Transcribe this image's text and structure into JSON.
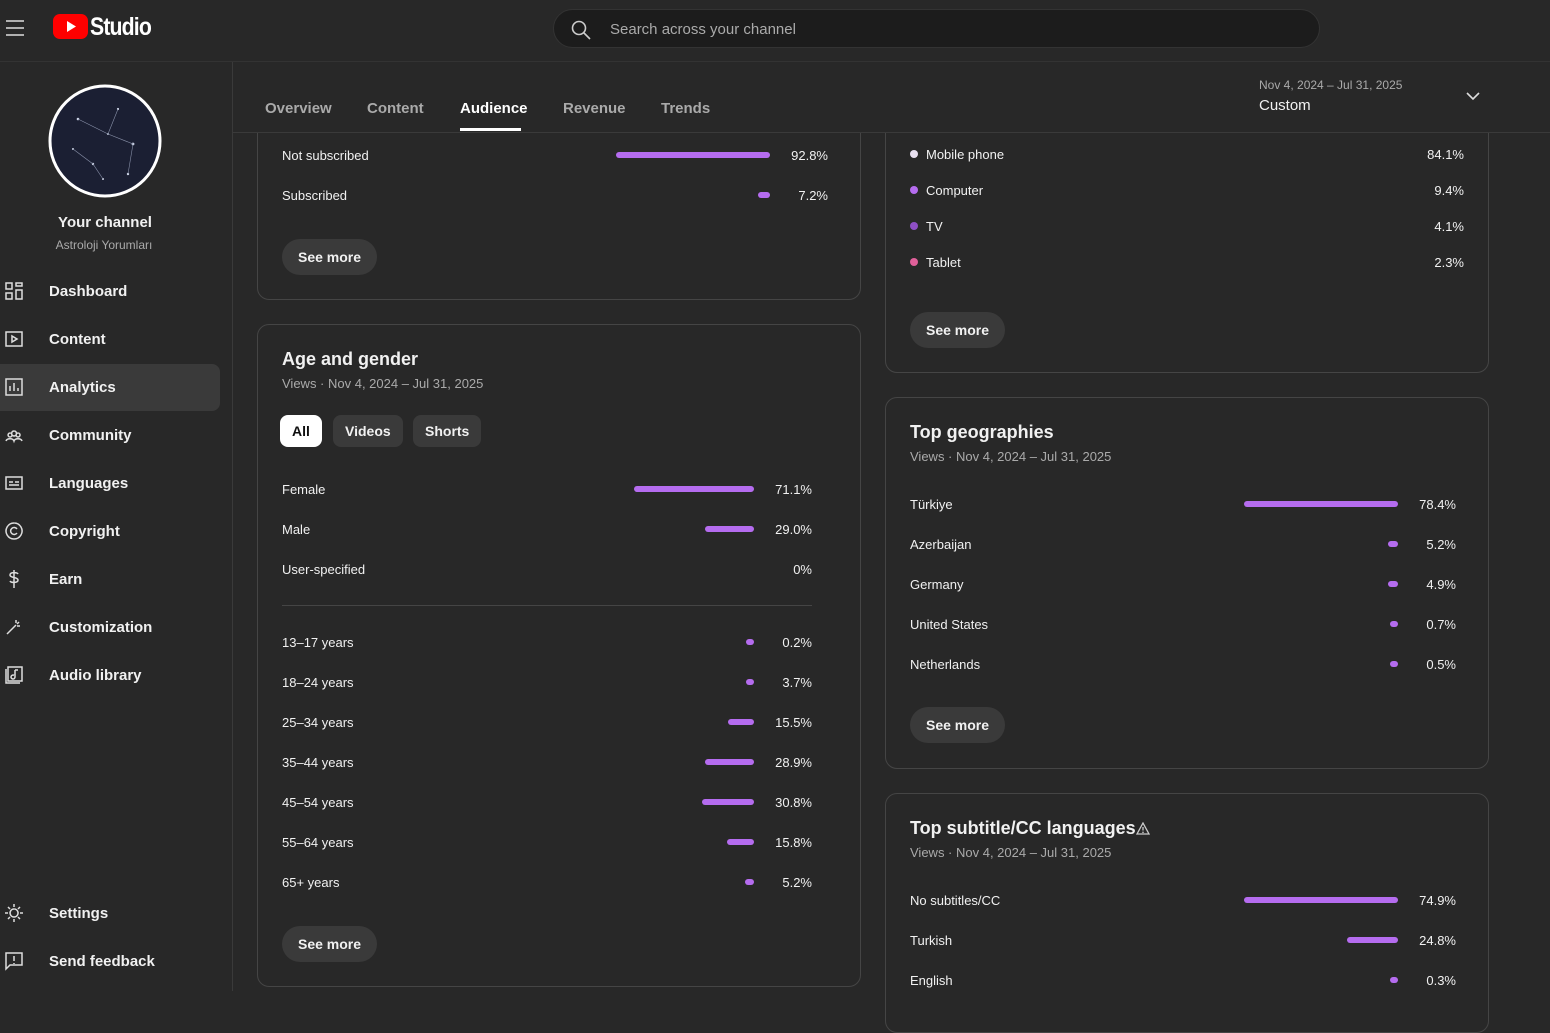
{
  "header": {
    "logo": "Studio",
    "search_placeholder": "Search across your channel"
  },
  "sidebar": {
    "channel_title": "Your channel",
    "channel_name": "Astroloji Yorumları",
    "nav": [
      "Dashboard",
      "Content",
      "Analytics",
      "Community",
      "Languages",
      "Copyright",
      "Earn",
      "Customization",
      "Audio library"
    ],
    "active": 2,
    "footer_nav": [
      "Settings",
      "Send feedback"
    ]
  },
  "tabs": {
    "items": [
      "Overview",
      "Content",
      "Audience",
      "Revenue",
      "Trends"
    ],
    "active": 2
  },
  "date_range": {
    "range": "Nov 4, 2024 – Jul 31, 2025",
    "label": "Custom"
  },
  "cards": {
    "subscription": {
      "rows": [
        {
          "label": "Not subscribed",
          "value": 92.8,
          "value_label": "92.8%"
        },
        {
          "label": "Subscribed",
          "value": 7.2,
          "value_label": "7.2%"
        }
      ],
      "button": "See more"
    },
    "age_gender": {
      "title": "Age and gender",
      "subtitle": "Views · Nov 4, 2024 – Jul 31, 2025",
      "filters": [
        "All",
        "Videos",
        "Shorts"
      ],
      "active_filter": 0,
      "gender": [
        {
          "label": "Female",
          "value": 71.1,
          "value_label": "71.1%"
        },
        {
          "label": "Male",
          "value": 29.0,
          "value_label": "29.0%"
        },
        {
          "label": "User-specified",
          "value": 0,
          "value_label": "0%"
        }
      ],
      "age": [
        {
          "label": "13–17 years",
          "value": 0.2,
          "value_label": "0.2%"
        },
        {
          "label": "18–24 years",
          "value": 3.7,
          "value_label": "3.7%"
        },
        {
          "label": "25–34 years",
          "value": 15.5,
          "value_label": "15.5%"
        },
        {
          "label": "35–44 years",
          "value": 28.9,
          "value_label": "28.9%"
        },
        {
          "label": "45–54 years",
          "value": 30.8,
          "value_label": "30.8%"
        },
        {
          "label": "55–64 years",
          "value": 15.8,
          "value_label": "15.8%"
        },
        {
          "label": "65+ years",
          "value": 5.2,
          "value_label": "5.2%"
        }
      ],
      "button": "See more"
    },
    "devices": {
      "rows": [
        {
          "label": "Mobile phone",
          "color": "#e8e0f0",
          "value": "84.1%"
        },
        {
          "label": "Computer",
          "color": "#b56cef",
          "value": "9.4%"
        },
        {
          "label": "TV",
          "color": "#8e4fc4",
          "value": "4.1%"
        },
        {
          "label": "Tablet",
          "color": "#e0609a",
          "value": "2.3%"
        }
      ],
      "button": "See more"
    },
    "geographies": {
      "title": "Top geographies",
      "subtitle": "Views · Nov 4, 2024 – Jul 31, 2025",
      "rows": [
        {
          "label": "Türkiye",
          "value": 78.4,
          "value_label": "78.4%"
        },
        {
          "label": "Azerbaijan",
          "value": 5.2,
          "value_label": "5.2%"
        },
        {
          "label": "Germany",
          "value": 4.9,
          "value_label": "4.9%"
        },
        {
          "label": "United States",
          "value": 0.7,
          "value_label": "0.7%"
        },
        {
          "label": "Netherlands",
          "value": 0.5,
          "value_label": "0.5%"
        }
      ],
      "button": "See more"
    },
    "subtitles": {
      "title": "Top subtitle/CC languages",
      "subtitle": "Views · Nov 4, 2024 – Jul 31, 2025",
      "rows": [
        {
          "label": "No subtitles/CC",
          "value": 74.9,
          "value_label": "74.9%"
        },
        {
          "label": "Turkish",
          "value": 24.8,
          "value_label": "24.8%"
        },
        {
          "label": "English",
          "value": 0.3,
          "value_label": "0.3%"
        }
      ]
    }
  }
}
